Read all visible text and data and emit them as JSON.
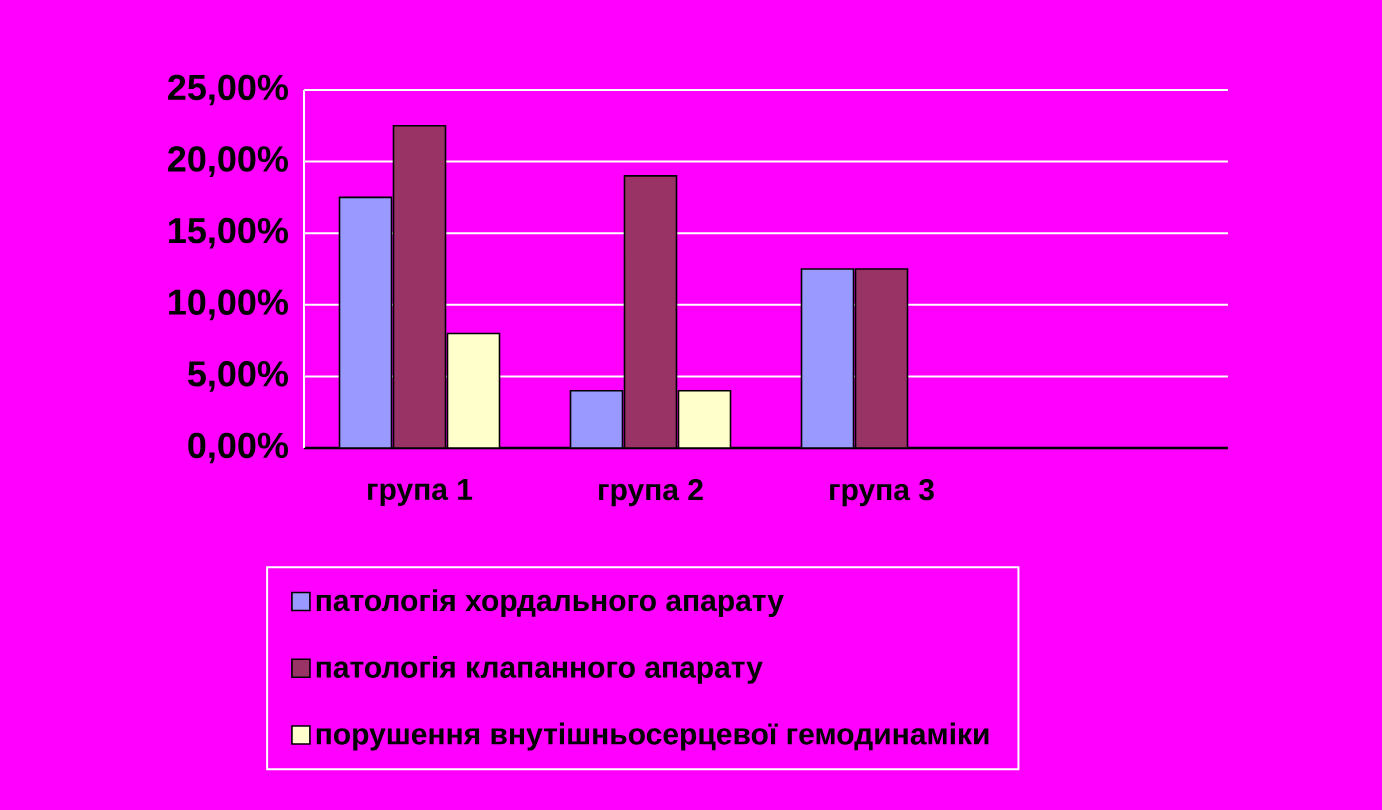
{
  "chart_data": {
    "type": "bar",
    "categories": [
      "група 1",
      "група 2",
      "група 3"
    ],
    "series": [
      {
        "name": "патологія хордального апарату",
        "color": "#9999ff",
        "values": [
          17.5,
          4,
          12.5
        ]
      },
      {
        "name": "патологія клапанного апарату",
        "color": "#993366",
        "values": [
          22.5,
          19,
          12.5
        ]
      },
      {
        "name": "порушення внутішньосерцевої гемодинаміки",
        "color": "#ffffcc",
        "values": [
          8,
          4,
          0
        ]
      }
    ],
    "ylim": [
      0,
      25
    ],
    "yticks": [
      {
        "value": 0,
        "label": "0,00%"
      },
      {
        "value": 5,
        "label": "5,00%"
      },
      {
        "value": 10,
        "label": "10,00%"
      },
      {
        "value": 15,
        "label": "15,00%"
      },
      {
        "value": 20,
        "label": "20,00%"
      },
      {
        "value": 25,
        "label": "25,00%"
      }
    ],
    "grid": "y",
    "legend": "bottom"
  }
}
